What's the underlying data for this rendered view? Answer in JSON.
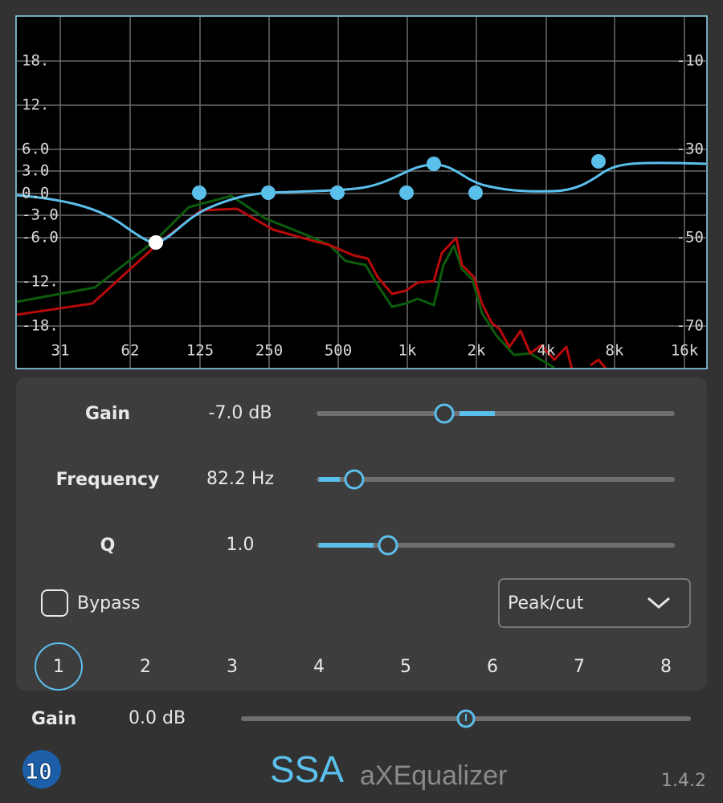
{
  "graph": {
    "y_left_labels": [
      "18.",
      "12.",
      "6.0",
      "3.0",
      "0.0",
      "-3.0",
      "-6.0",
      "-12.",
      "-18."
    ],
    "y_right_labels": [
      "-10",
      "-30",
      "-50",
      "-70"
    ],
    "x_labels": [
      "31",
      "62",
      "125",
      "250",
      "500",
      "1k",
      "2k",
      "4k",
      "8k",
      "16k"
    ]
  },
  "controls": [
    {
      "label": "Gain",
      "value": "-7.0 dB"
    },
    {
      "label": "Frequency",
      "value": "82.2 Hz"
    },
    {
      "label": "Q",
      "value": "1.0"
    }
  ],
  "bypass": "Bypass",
  "filter_type": "Peak/cut",
  "bands": [
    "1",
    "2",
    "3",
    "4",
    "5",
    "6",
    "7",
    "8"
  ],
  "output": {
    "label": "Gain",
    "value": "0.0 dB"
  },
  "logo": {
    "icon": "10",
    "brand": "SSA",
    "product": "aXEqualizer"
  },
  "version": "1.4.2"
}
